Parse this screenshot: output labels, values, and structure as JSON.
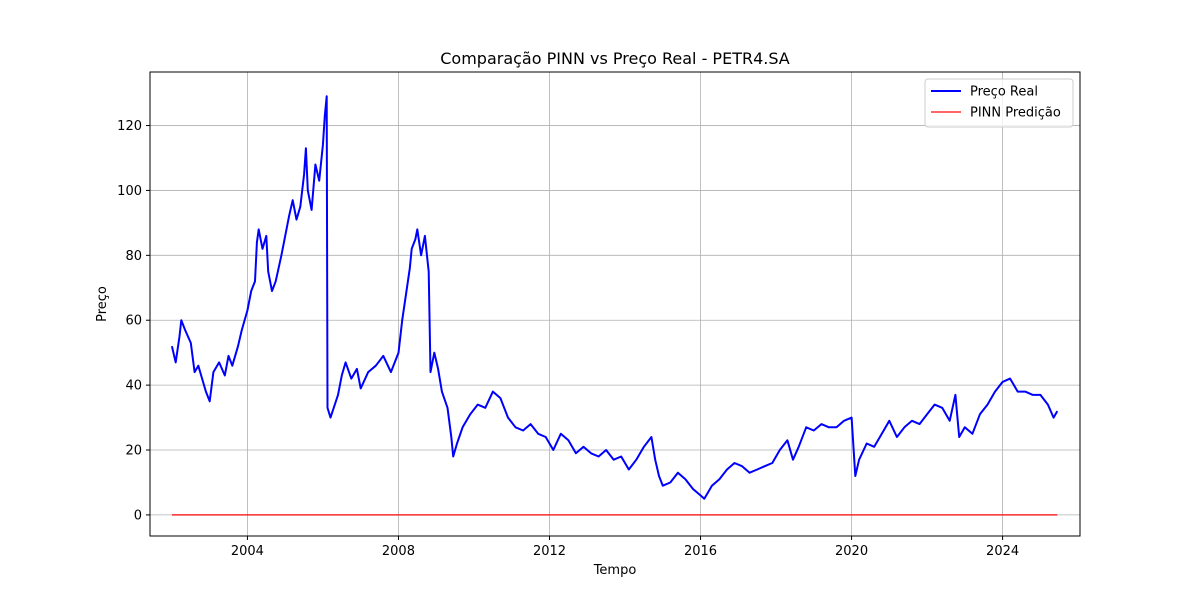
{
  "chart_data": {
    "type": "line",
    "title": "Comparação PINN vs Preço Real - PETR4.SA",
    "xlabel": "Tempo",
    "ylabel": "Preço",
    "xlim": [
      2001.42,
      2026.05
    ],
    "ylim": [
      -6.5,
      136.5
    ],
    "x_ticks": [
      2004,
      2008,
      2012,
      2016,
      2020,
      2024
    ],
    "y_ticks": [
      0,
      20,
      40,
      60,
      80,
      100,
      120
    ],
    "grid": true,
    "legend_position": "top-right",
    "series": [
      {
        "name": "Preço Real",
        "color": "#0000ff",
        "points": [
          [
            2002.0,
            52
          ],
          [
            2002.1,
            47
          ],
          [
            2002.2,
            55
          ],
          [
            2002.25,
            60
          ],
          [
            2002.35,
            57
          ],
          [
            2002.5,
            53
          ],
          [
            2002.6,
            44
          ],
          [
            2002.7,
            46
          ],
          [
            2002.8,
            42
          ],
          [
            2002.9,
            38
          ],
          [
            2003.0,
            35
          ],
          [
            2003.1,
            44
          ],
          [
            2003.25,
            47
          ],
          [
            2003.4,
            43
          ],
          [
            2003.5,
            49
          ],
          [
            2003.6,
            46
          ],
          [
            2003.75,
            52
          ],
          [
            2003.85,
            57
          ],
          [
            2004.0,
            63
          ],
          [
            2004.1,
            69
          ],
          [
            2004.2,
            72
          ],
          [
            2004.25,
            84
          ],
          [
            2004.3,
            88
          ],
          [
            2004.4,
            82
          ],
          [
            2004.5,
            86
          ],
          [
            2004.55,
            75
          ],
          [
            2004.65,
            69
          ],
          [
            2004.75,
            72
          ],
          [
            2004.9,
            80
          ],
          [
            2005.0,
            86
          ],
          [
            2005.1,
            92
          ],
          [
            2005.2,
            97
          ],
          [
            2005.3,
            91
          ],
          [
            2005.4,
            95
          ],
          [
            2005.5,
            105
          ],
          [
            2005.55,
            113
          ],
          [
            2005.6,
            100
          ],
          [
            2005.7,
            94
          ],
          [
            2005.8,
            108
          ],
          [
            2005.9,
            103
          ],
          [
            2006.0,
            114
          ],
          [
            2006.05,
            123
          ],
          [
            2006.1,
            129
          ],
          [
            2006.12,
            33
          ],
          [
            2006.2,
            30
          ],
          [
            2006.4,
            37
          ],
          [
            2006.5,
            43
          ],
          [
            2006.6,
            47
          ],
          [
            2006.75,
            42
          ],
          [
            2006.9,
            45
          ],
          [
            2007.0,
            39
          ],
          [
            2007.2,
            44
          ],
          [
            2007.4,
            46
          ],
          [
            2007.6,
            49
          ],
          [
            2007.8,
            44
          ],
          [
            2008.0,
            50
          ],
          [
            2008.1,
            60
          ],
          [
            2008.2,
            68
          ],
          [
            2008.3,
            76
          ],
          [
            2008.35,
            82
          ],
          [
            2008.45,
            85
          ],
          [
            2008.5,
            88
          ],
          [
            2008.6,
            80
          ],
          [
            2008.7,
            86
          ],
          [
            2008.8,
            75
          ],
          [
            2008.85,
            44
          ],
          [
            2008.95,
            50
          ],
          [
            2009.05,
            45
          ],
          [
            2009.15,
            38
          ],
          [
            2009.3,
            33
          ],
          [
            2009.4,
            24
          ],
          [
            2009.45,
            18
          ],
          [
            2009.55,
            22
          ],
          [
            2009.7,
            27
          ],
          [
            2009.9,
            31
          ],
          [
            2010.1,
            34
          ],
          [
            2010.3,
            33
          ],
          [
            2010.5,
            38
          ],
          [
            2010.7,
            36
          ],
          [
            2010.9,
            30
          ],
          [
            2011.1,
            27
          ],
          [
            2011.3,
            26
          ],
          [
            2011.5,
            28
          ],
          [
            2011.7,
            25
          ],
          [
            2011.9,
            24
          ],
          [
            2012.1,
            20
          ],
          [
            2012.3,
            25
          ],
          [
            2012.5,
            23
          ],
          [
            2012.7,
            19
          ],
          [
            2012.9,
            21
          ],
          [
            2013.1,
            19
          ],
          [
            2013.3,
            18
          ],
          [
            2013.5,
            20
          ],
          [
            2013.7,
            17
          ],
          [
            2013.9,
            18
          ],
          [
            2014.1,
            14
          ],
          [
            2014.3,
            17
          ],
          [
            2014.5,
            21
          ],
          [
            2014.7,
            24
          ],
          [
            2014.8,
            17
          ],
          [
            2014.9,
            12
          ],
          [
            2015.0,
            9
          ],
          [
            2015.2,
            10
          ],
          [
            2015.4,
            13
          ],
          [
            2015.6,
            11
          ],
          [
            2015.8,
            8
          ],
          [
            2016.0,
            6
          ],
          [
            2016.1,
            5
          ],
          [
            2016.3,
            9
          ],
          [
            2016.5,
            11
          ],
          [
            2016.7,
            14
          ],
          [
            2016.9,
            16
          ],
          [
            2017.1,
            15
          ],
          [
            2017.3,
            13
          ],
          [
            2017.5,
            14
          ],
          [
            2017.7,
            15
          ],
          [
            2017.9,
            16
          ],
          [
            2018.1,
            20
          ],
          [
            2018.3,
            23
          ],
          [
            2018.45,
            17
          ],
          [
            2018.6,
            21
          ],
          [
            2018.8,
            27
          ],
          [
            2019.0,
            26
          ],
          [
            2019.2,
            28
          ],
          [
            2019.4,
            27
          ],
          [
            2019.6,
            27
          ],
          [
            2019.8,
            29
          ],
          [
            2020.0,
            30
          ],
          [
            2020.1,
            12
          ],
          [
            2020.2,
            17
          ],
          [
            2020.4,
            22
          ],
          [
            2020.6,
            21
          ],
          [
            2020.8,
            25
          ],
          [
            2021.0,
            29
          ],
          [
            2021.2,
            24
          ],
          [
            2021.4,
            27
          ],
          [
            2021.6,
            29
          ],
          [
            2021.8,
            28
          ],
          [
            2022.0,
            31
          ],
          [
            2022.2,
            34
          ],
          [
            2022.4,
            33
          ],
          [
            2022.6,
            29
          ],
          [
            2022.75,
            37
          ],
          [
            2022.85,
            24
          ],
          [
            2023.0,
            27
          ],
          [
            2023.2,
            25
          ],
          [
            2023.4,
            31
          ],
          [
            2023.6,
            34
          ],
          [
            2023.8,
            38
          ],
          [
            2024.0,
            41
          ],
          [
            2024.2,
            42
          ],
          [
            2024.4,
            38
          ],
          [
            2024.6,
            38
          ],
          [
            2024.8,
            37
          ],
          [
            2025.0,
            37
          ],
          [
            2025.2,
            34
          ],
          [
            2025.35,
            30
          ],
          [
            2025.45,
            32
          ]
        ]
      },
      {
        "name": "PINN Predição",
        "color": "#ff0000",
        "points": [
          [
            2002.0,
            0
          ],
          [
            2025.45,
            0
          ]
        ]
      }
    ]
  }
}
